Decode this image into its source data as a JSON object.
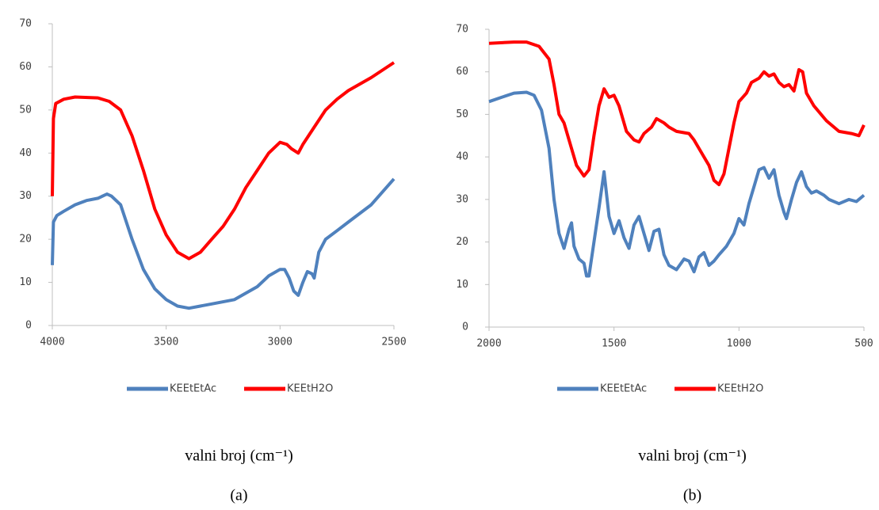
{
  "chart_data": [
    {
      "type": "line",
      "xlim": [
        4000,
        2500
      ],
      "xticks": [
        4000,
        3500,
        3000,
        2500
      ],
      "ylim": [
        0,
        70
      ],
      "yticks": [
        0,
        10,
        20,
        30,
        40,
        50,
        60,
        70
      ],
      "x_label": "valni broj (cm⁻¹)",
      "caption": "(a)",
      "series": [
        {
          "name": "KEEtEtAc",
          "color": "#4f81bd",
          "x": [
            4000,
            3995,
            3980,
            3950,
            3900,
            3850,
            3800,
            3760,
            3740,
            3700,
            3650,
            3600,
            3550,
            3500,
            3450,
            3400,
            3350,
            3300,
            3200,
            3100,
            3050,
            3000,
            2980,
            2960,
            2940,
            2920,
            2900,
            2880,
            2860,
            2850,
            2830,
            2800,
            2750,
            2700,
            2600,
            2500
          ],
          "values": [
            14,
            24,
            25.5,
            26.5,
            28,
            29,
            29.5,
            30.5,
            30,
            28,
            20,
            13,
            8.5,
            6,
            4.5,
            4,
            4.5,
            5,
            6,
            9,
            11.5,
            13,
            13,
            11,
            8,
            7,
            10,
            12.5,
            12,
            11,
            17,
            20,
            22,
            24,
            28,
            34
          ]
        },
        {
          "name": "KEEtH2O",
          "color": "#ff0000",
          "x": [
            4000,
            3995,
            3985,
            3950,
            3900,
            3800,
            3750,
            3700,
            3650,
            3600,
            3550,
            3500,
            3450,
            3400,
            3350,
            3300,
            3250,
            3200,
            3150,
            3100,
            3050,
            3000,
            2970,
            2950,
            2920,
            2900,
            2850,
            2800,
            2750,
            2700,
            2600,
            2500
          ],
          "values": [
            30,
            48,
            51.5,
            52.5,
            53,
            52.8,
            52,
            50,
            44,
            36,
            27,
            21,
            17,
            15.5,
            17,
            20,
            23,
            27,
            32,
            36,
            40,
            42.5,
            42,
            41,
            40,
            42,
            46,
            50,
            52.5,
            54.5,
            57.5,
            61
          ]
        }
      ]
    },
    {
      "type": "line",
      "xlim": [
        2000,
        500
      ],
      "xticks": [
        2000,
        1500,
        1000,
        500
      ],
      "ylim": [
        0,
        70
      ],
      "yticks": [
        0,
        10,
        20,
        30,
        40,
        50,
        60,
        70
      ],
      "x_label": "valni broj (cm⁻¹)",
      "caption": "(b)",
      "series": [
        {
          "name": "KEEtEtAc",
          "color": "#4f81bd",
          "x": [
            2000,
            1950,
            1900,
            1850,
            1820,
            1790,
            1760,
            1740,
            1720,
            1700,
            1680,
            1670,
            1660,
            1640,
            1620,
            1610,
            1600,
            1580,
            1560,
            1540,
            1520,
            1500,
            1480,
            1460,
            1440,
            1420,
            1400,
            1380,
            1360,
            1340,
            1320,
            1300,
            1280,
            1250,
            1220,
            1200,
            1180,
            1160,
            1140,
            1120,
            1100,
            1080,
            1050,
            1020,
            1000,
            980,
            960,
            940,
            920,
            900,
            880,
            860,
            840,
            820,
            810,
            790,
            770,
            750,
            730,
            710,
            690,
            660,
            640,
            600,
            560,
            530,
            500
          ],
          "values": [
            53,
            54,
            55,
            55.2,
            54.5,
            51,
            42,
            30,
            22,
            18.5,
            23,
            24.5,
            19,
            16,
            15,
            12,
            12,
            20,
            28,
            36.5,
            26,
            22,
            25,
            21,
            18.5,
            24,
            26,
            22,
            18,
            22.5,
            23,
            17,
            14.5,
            13.5,
            16,
            15.5,
            13,
            16.5,
            17.5,
            14.5,
            15.5,
            17,
            19,
            22,
            25.5,
            24,
            29,
            33,
            37,
            37.5,
            35,
            37,
            31,
            27,
            25.5,
            30,
            34,
            36.5,
            33,
            31.5,
            32,
            31,
            30,
            29,
            30,
            29.5,
            31
          ]
        },
        {
          "name": "KEEtH2O",
          "color": "#ff0000",
          "x": [
            2000,
            1900,
            1850,
            1800,
            1760,
            1740,
            1720,
            1700,
            1680,
            1650,
            1620,
            1600,
            1580,
            1560,
            1540,
            1520,
            1500,
            1480,
            1450,
            1420,
            1400,
            1380,
            1350,
            1330,
            1300,
            1280,
            1250,
            1200,
            1180,
            1150,
            1120,
            1100,
            1080,
            1060,
            1040,
            1020,
            1000,
            970,
            950,
            920,
            900,
            880,
            860,
            840,
            820,
            800,
            780,
            760,
            745,
            730,
            700,
            650,
            600,
            550,
            520,
            500
          ],
          "values": [
            66.7,
            67,
            67,
            66,
            63,
            57,
            50,
            48,
            44,
            38,
            35.5,
            37,
            45,
            52,
            56,
            54,
            54.5,
            52,
            46,
            44,
            43.5,
            45.5,
            47,
            49,
            48,
            47,
            46,
            45.5,
            44,
            41,
            38,
            34.5,
            33.5,
            36,
            42,
            48,
            53,
            55,
            57.5,
            58.5,
            60,
            59,
            59.5,
            57.5,
            56.5,
            57,
            55.5,
            60.5,
            60,
            55,
            52,
            48.5,
            46,
            45.5,
            45,
            47.5
          ]
        }
      ]
    }
  ]
}
